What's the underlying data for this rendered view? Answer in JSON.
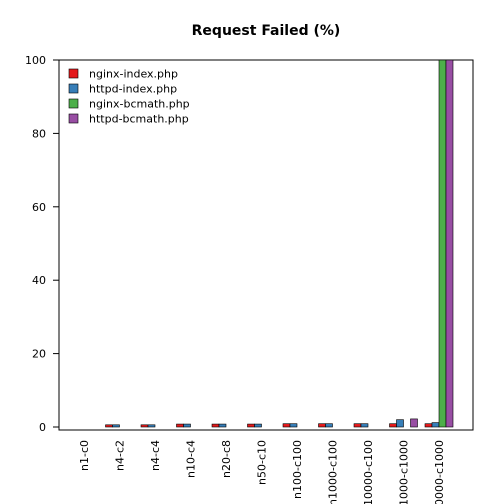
{
  "chart_data": {
    "type": "bar",
    "title": "Request Failed (%)",
    "xlabel": "",
    "ylabel": "",
    "ylim": [
      0,
      100
    ],
    "yticks": [
      0,
      20,
      40,
      60,
      80,
      100
    ],
    "grid": false,
    "legend_position": "top-left",
    "categories": [
      "n1-c0",
      "n4-c2",
      "n4-c4",
      "n10-c4",
      "n20-c8",
      "n50-c10",
      "n100-c100",
      "n1000-c100",
      "n10000-c100",
      "n1000-c1000",
      "n10000-c1000"
    ],
    "series": [
      {
        "name": "nginx-index.php",
        "color": "#e41a1c",
        "values": [
          0,
          0.6,
          0.6,
          0.8,
          0.8,
          0.8,
          0.9,
          0.9,
          0.9,
          0.9,
          0.9
        ]
      },
      {
        "name": "httpd-index.php",
        "color": "#377eb8",
        "values": [
          0,
          0.6,
          0.6,
          0.8,
          0.8,
          0.8,
          0.9,
          0.9,
          0.9,
          2.0,
          1.2
        ]
      },
      {
        "name": "nginx-bcmath.php",
        "color": "#4daf4a",
        "values": [
          0,
          0,
          0,
          0,
          0,
          0,
          0,
          0,
          0,
          0,
          100
        ]
      },
      {
        "name": "httpd-bcmath.php",
        "color": "#984ea3",
        "values": [
          0,
          0,
          0,
          0,
          0,
          0,
          0,
          0,
          0,
          2.2,
          100
        ]
      }
    ]
  }
}
